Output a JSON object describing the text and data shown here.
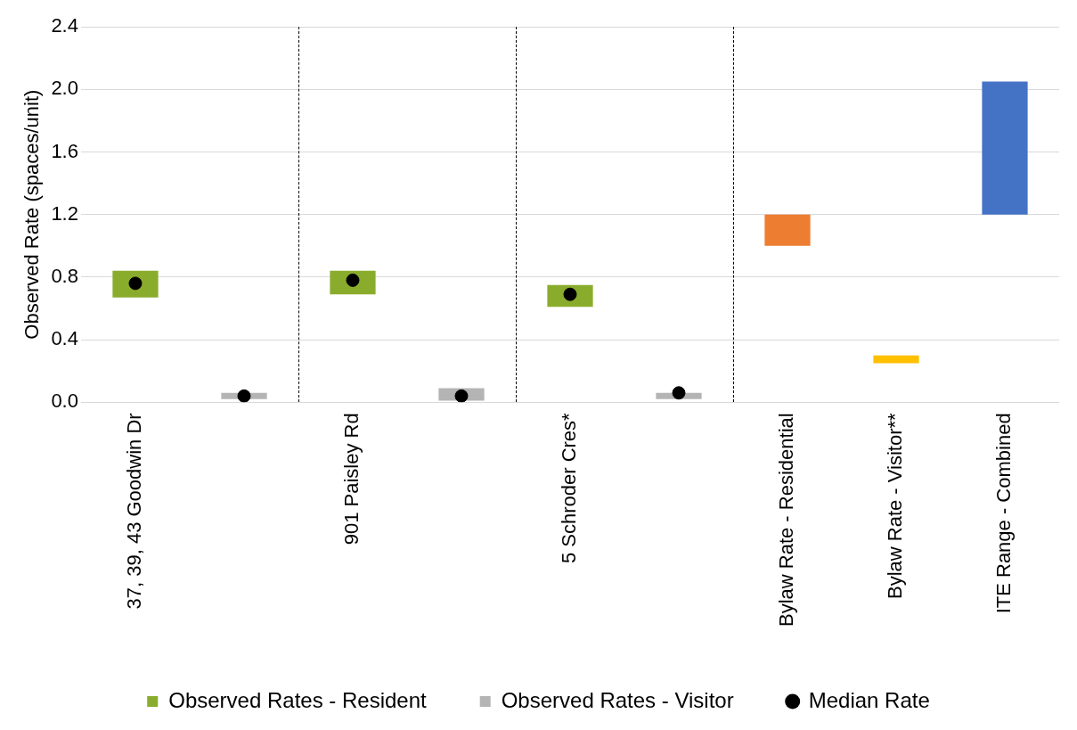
{
  "chart_data": {
    "type": "bar",
    "ylabel": "Observed Rate (spaces/unit)",
    "categories": [
      "37, 39, 43 Goodwin Dr",
      null,
      "901 Paisley Rd",
      null,
      "5 Schroder Cres*",
      null,
      "Bylaw Rate - Residential",
      "Bylaw Rate - Visitor**",
      "ITE Range - Combined"
    ],
    "series": [
      {
        "name": "Observed Rates - Resident",
        "color": "#8aac2c",
        "base": [
          0.67,
          null,
          0.69,
          null,
          0.61,
          null,
          null,
          null,
          null
        ],
        "values": [
          0.17,
          null,
          0.15,
          null,
          0.14,
          null,
          null,
          null,
          null
        ]
      },
      {
        "name": "Observed Rates - Visitor",
        "color": "#b4b4b4",
        "base": [
          null,
          0.02,
          null,
          0.01,
          null,
          0.02,
          null,
          null,
          null
        ],
        "values": [
          null,
          0.04,
          null,
          0.08,
          null,
          0.04,
          null,
          null,
          null
        ]
      },
      {
        "colors": [
          null,
          null,
          null,
          null,
          null,
          null,
          "#ed7d31",
          "#ffc000",
          "#4472c4"
        ],
        "base": [
          null,
          null,
          null,
          null,
          null,
          null,
          1.0,
          0.25,
          1.2
        ],
        "values": [
          null,
          null,
          null,
          null,
          null,
          null,
          0.2,
          0.05,
          0.85
        ]
      },
      {
        "type": "scatter",
        "name": "Median Rate",
        "color": "#000000",
        "marker": "circle",
        "values": [
          0.76,
          0.04,
          0.78,
          0.04,
          0.69,
          0.06,
          null,
          null,
          null
        ]
      }
    ],
    "ylim": [
      0,
      2.4
    ],
    "yticks": [
      {
        "value": 0,
        "label": "0.0"
      },
      {
        "value": 0.4,
        "label": "0.4"
      },
      {
        "value": 0.8,
        "label": "0.8"
      },
      {
        "value": 1.2,
        "label": "1.2"
      },
      {
        "value": 1.6,
        "label": "1.6"
      },
      {
        "value": 2,
        "label": "2.0"
      },
      {
        "value": 2.4,
        "label": "2.4"
      }
    ],
    "grid": "y",
    "legend": "bottom"
  }
}
